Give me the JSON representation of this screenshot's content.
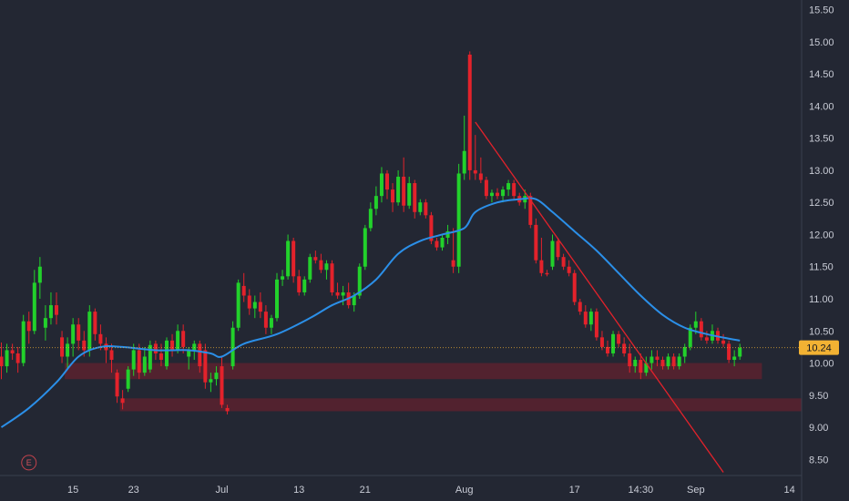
{
  "chart_data": {
    "type": "candlestick",
    "title": "",
    "xlabel": "",
    "ylabel": "",
    "ylim": [
      8.25,
      15.65
    ],
    "y_ticks": [
      {
        "label": "15.50",
        "value": 15.5
      },
      {
        "label": "15.00",
        "value": 15.0
      },
      {
        "label": "14.50",
        "value": 14.5
      },
      {
        "label": "14.00",
        "value": 14.0
      },
      {
        "label": "13.50",
        "value": 13.5
      },
      {
        "label": "13.00",
        "value": 13.0
      },
      {
        "label": "12.50",
        "value": 12.5
      },
      {
        "label": "12.00",
        "value": 12.0
      },
      {
        "label": "11.50",
        "value": 11.5
      },
      {
        "label": "11.00",
        "value": 11.0
      },
      {
        "label": "10.50",
        "value": 10.5
      },
      {
        "label": "10.00",
        "value": 10.0
      },
      {
        "label": "9.50",
        "value": 9.5
      },
      {
        "label": "9.00",
        "value": 9.0
      },
      {
        "label": "8.50",
        "value": 8.5
      }
    ],
    "x_ticks": [
      {
        "label": "15",
        "index": 13
      },
      {
        "label": "23",
        "index": 24
      },
      {
        "label": "Jul",
        "index": 40
      },
      {
        "label": "13",
        "index": 54
      },
      {
        "label": "21",
        "index": 66
      },
      {
        "label": "Aug",
        "index": 84
      },
      {
        "label": "17",
        "index": 104
      },
      {
        "label": "14:30",
        "index": 116
      },
      {
        "label": "Sep",
        "index": 126
      },
      {
        "label": "14",
        "index": 143
      }
    ],
    "x_count": 146,
    "last_price": "10.24",
    "current_price": 10.24,
    "grid": false,
    "colors": {
      "up": "#22d12b",
      "down": "#e3222b",
      "ma": "#2b8fe8",
      "trendline": "#e3222b",
      "zone": "#7a1f2b",
      "price_tag": "#f2b233",
      "background": "#232733",
      "axis_text": "#c9ccd6"
    },
    "candles": [
      [
        10.1,
        10.32,
        9.75,
        9.95
      ],
      [
        9.95,
        10.3,
        9.85,
        10.2
      ],
      [
        10.2,
        10.3,
        10.05,
        10.15
      ],
      [
        10.15,
        10.25,
        9.85,
        10.0
      ],
      [
        10.0,
        10.75,
        9.95,
        10.65
      ],
      [
        10.65,
        10.8,
        10.3,
        10.5
      ],
      [
        10.5,
        11.45,
        10.45,
        11.25
      ],
      [
        11.25,
        11.65,
        11.0,
        11.5
      ],
      [
        10.55,
        10.9,
        10.35,
        10.7
      ],
      [
        10.7,
        11.1,
        10.6,
        10.9
      ],
      [
        10.9,
        11.1,
        10.6,
        10.75
      ],
      [
        10.4,
        10.5,
        10.0,
        10.1
      ],
      [
        10.1,
        10.4,
        9.9,
        10.3
      ],
      [
        10.3,
        10.7,
        10.1,
        10.6
      ],
      [
        10.6,
        10.7,
        10.2,
        10.35
      ],
      [
        10.35,
        10.5,
        10.1,
        10.2
      ],
      [
        10.2,
        10.9,
        10.1,
        10.8
      ],
      [
        10.8,
        10.85,
        10.35,
        10.45
      ],
      [
        10.45,
        10.6,
        10.2,
        10.3
      ],
      [
        10.3,
        10.4,
        10.0,
        10.2
      ],
      [
        10.2,
        10.3,
        9.85,
        10.05
      ],
      [
        9.85,
        9.9,
        9.38,
        9.48
      ],
      [
        9.45,
        9.58,
        9.28,
        9.38
      ],
      [
        9.6,
        9.95,
        9.55,
        9.9
      ],
      [
        9.9,
        10.3,
        9.8,
        10.2
      ],
      [
        10.2,
        10.3,
        9.75,
        9.85
      ],
      [
        9.85,
        10.25,
        9.8,
        10.1
      ],
      [
        9.9,
        10.35,
        9.85,
        10.28
      ],
      [
        10.3,
        10.35,
        10.05,
        10.15
      ],
      [
        10.15,
        10.3,
        9.95,
        10.05
      ],
      [
        9.95,
        10.4,
        9.9,
        10.35
      ],
      [
        10.35,
        10.45,
        10.1,
        10.2
      ],
      [
        10.2,
        10.6,
        10.15,
        10.5
      ],
      [
        10.5,
        10.6,
        10.15,
        10.25
      ],
      [
        10.1,
        10.25,
        9.9,
        10.2
      ],
      [
        10.2,
        10.35,
        10.05,
        10.3
      ],
      [
        10.3,
        10.35,
        9.85,
        9.95
      ],
      [
        10.2,
        10.3,
        9.6,
        9.7
      ],
      [
        9.7,
        9.85,
        9.55,
        9.75
      ],
      [
        9.75,
        9.95,
        9.65,
        9.85
      ],
      [
        9.95,
        10.1,
        9.3,
        9.35
      ],
      [
        9.3,
        9.35,
        9.2,
        9.25
      ],
      [
        9.95,
        10.65,
        9.9,
        10.55
      ],
      [
        10.55,
        11.3,
        10.5,
        11.25
      ],
      [
        11.2,
        11.4,
        10.95,
        11.05
      ],
      [
        11.05,
        11.15,
        10.75,
        10.85
      ],
      [
        10.85,
        11.05,
        10.7,
        10.95
      ],
      [
        10.95,
        11.1,
        10.7,
        10.8
      ],
      [
        10.8,
        10.9,
        10.45,
        10.55
      ],
      [
        10.55,
        10.75,
        10.45,
        10.7
      ],
      [
        10.7,
        11.4,
        10.65,
        11.3
      ],
      [
        11.3,
        11.45,
        11.2,
        11.35
      ],
      [
        11.35,
        12.0,
        11.3,
        11.9
      ],
      [
        11.9,
        11.95,
        11.25,
        11.35
      ],
      [
        11.35,
        11.45,
        11.05,
        11.1
      ],
      [
        11.1,
        11.35,
        11.05,
        11.3
      ],
      [
        11.3,
        11.7,
        11.25,
        11.65
      ],
      [
        11.65,
        11.75,
        11.55,
        11.6
      ],
      [
        11.6,
        11.7,
        11.4,
        11.45
      ],
      [
        11.45,
        11.6,
        11.3,
        11.55
      ],
      [
        11.55,
        11.6,
        11.05,
        11.1
      ],
      [
        11.1,
        11.25,
        11.0,
        11.05
      ],
      [
        11.05,
        11.2,
        10.9,
        11.1
      ],
      [
        11.1,
        11.25,
        10.85,
        10.9
      ],
      [
        10.9,
        11.1,
        10.8,
        11.05
      ],
      [
        11.05,
        11.55,
        11.0,
        11.5
      ],
      [
        11.5,
        12.15,
        11.45,
        12.1
      ],
      [
        12.1,
        12.5,
        12.05,
        12.4
      ],
      [
        12.4,
        12.75,
        12.3,
        12.6
      ],
      [
        12.6,
        13.05,
        12.5,
        12.95
      ],
      [
        12.95,
        13.0,
        12.55,
        12.7
      ],
      [
        12.7,
        12.8,
        12.35,
        12.5
      ],
      [
        12.5,
        13.0,
        12.45,
        12.9
      ],
      [
        12.9,
        13.2,
        12.35,
        12.45
      ],
      [
        12.45,
        12.9,
        12.4,
        12.8
      ],
      [
        12.8,
        12.85,
        12.25,
        12.35
      ],
      [
        12.35,
        12.55,
        12.3,
        12.5
      ],
      [
        12.5,
        12.55,
        12.25,
        12.3
      ],
      [
        12.3,
        12.35,
        11.85,
        11.9
      ],
      [
        11.9,
        11.95,
        11.75,
        11.8
      ],
      [
        11.8,
        12.0,
        11.75,
        11.95
      ],
      [
        11.95,
        12.15,
        11.85,
        12.05
      ],
      [
        11.6,
        12.1,
        11.4,
        11.5
      ],
      [
        11.5,
        13.1,
        11.4,
        12.95
      ],
      [
        12.95,
        13.85,
        12.85,
        13.3
      ],
      [
        14.8,
        14.85,
        12.85,
        13.0
      ],
      [
        13.0,
        13.55,
        12.85,
        12.95
      ],
      [
        12.95,
        13.2,
        12.8,
        12.85
      ],
      [
        12.85,
        12.9,
        12.55,
        12.6
      ],
      [
        12.6,
        12.7,
        12.5,
        12.65
      ],
      [
        12.65,
        12.72,
        12.55,
        12.6
      ],
      [
        12.6,
        12.75,
        12.5,
        12.7
      ],
      [
        12.7,
        12.85,
        12.6,
        12.8
      ],
      [
        12.8,
        12.85,
        12.55,
        12.6
      ],
      [
        12.6,
        12.65,
        12.45,
        12.5
      ],
      [
        12.5,
        12.7,
        12.4,
        12.6
      ],
      [
        12.6,
        12.65,
        12.1,
        12.15
      ],
      [
        12.15,
        12.25,
        11.55,
        11.6
      ],
      [
        11.6,
        11.95,
        11.35,
        11.4
      ],
      [
        11.4,
        11.45,
        11.35,
        11.38
      ],
      [
        11.5,
        12.0,
        11.45,
        11.9
      ],
      [
        11.9,
        11.95,
        11.6,
        11.65
      ],
      [
        11.65,
        11.7,
        11.45,
        11.5
      ],
      [
        11.5,
        11.6,
        11.35,
        11.4
      ],
      [
        11.4,
        11.45,
        10.9,
        10.95
      ],
      [
        10.95,
        11.0,
        10.75,
        10.8
      ],
      [
        10.8,
        10.9,
        10.55,
        10.6
      ],
      [
        10.6,
        10.85,
        10.5,
        10.8
      ],
      [
        10.8,
        10.85,
        10.35,
        10.4
      ],
      [
        10.4,
        10.5,
        10.2,
        10.25
      ],
      [
        10.25,
        10.35,
        10.1,
        10.15
      ],
      [
        10.15,
        10.5,
        10.1,
        10.45
      ],
      [
        10.45,
        10.5,
        10.25,
        10.3
      ],
      [
        10.3,
        10.4,
        10.1,
        10.15
      ],
      [
        10.15,
        10.3,
        9.85,
        9.95
      ],
      [
        9.95,
        10.1,
        9.85,
        10.05
      ],
      [
        10.05,
        10.15,
        9.75,
        9.85
      ],
      [
        9.85,
        10.1,
        9.8,
        10.0
      ],
      [
        10.0,
        10.2,
        9.9,
        10.1
      ],
      [
        10.1,
        10.2,
        9.95,
        10.05
      ],
      [
        10.05,
        10.1,
        9.9,
        9.95
      ],
      [
        9.95,
        10.15,
        9.9,
        10.1
      ],
      [
        10.1,
        10.15,
        9.9,
        9.95
      ],
      [
        9.95,
        10.15,
        9.9,
        10.1
      ],
      [
        10.1,
        10.3,
        10.0,
        10.25
      ],
      [
        10.25,
        10.6,
        10.2,
        10.55
      ],
      [
        10.55,
        10.8,
        10.45,
        10.65
      ],
      [
        10.65,
        10.7,
        10.35,
        10.4
      ],
      [
        10.4,
        10.5,
        10.3,
        10.35
      ],
      [
        10.35,
        10.6,
        10.3,
        10.5
      ],
      [
        10.5,
        10.55,
        10.3,
        10.35
      ],
      [
        10.35,
        10.45,
        10.25,
        10.3
      ],
      [
        10.3,
        10.35,
        10.0,
        10.05
      ],
      [
        10.05,
        10.2,
        9.95,
        10.1
      ],
      [
        10.1,
        10.3,
        10.05,
        10.24
      ]
    ],
    "ma_series": [
      {
        "i": 0,
        "v": 9.0
      },
      {
        "i": 5,
        "v": 9.3
      },
      {
        "i": 10,
        "v": 9.7
      },
      {
        "i": 14,
        "v": 10.1
      },
      {
        "i": 18,
        "v": 10.25
      },
      {
        "i": 22,
        "v": 10.25
      },
      {
        "i": 28,
        "v": 10.2
      },
      {
        "i": 34,
        "v": 10.2
      },
      {
        "i": 38,
        "v": 10.15
      },
      {
        "i": 40,
        "v": 10.1
      },
      {
        "i": 44,
        "v": 10.3
      },
      {
        "i": 50,
        "v": 10.45
      },
      {
        "i": 56,
        "v": 10.7
      },
      {
        "i": 60,
        "v": 10.9
      },
      {
        "i": 64,
        "v": 11.05
      },
      {
        "i": 68,
        "v": 11.3
      },
      {
        "i": 72,
        "v": 11.7
      },
      {
        "i": 76,
        "v": 11.9
      },
      {
        "i": 80,
        "v": 12.0
      },
      {
        "i": 84,
        "v": 12.1
      },
      {
        "i": 86,
        "v": 12.35
      },
      {
        "i": 90,
        "v": 12.5
      },
      {
        "i": 94,
        "v": 12.55
      },
      {
        "i": 97,
        "v": 12.55
      },
      {
        "i": 100,
        "v": 12.35
      },
      {
        "i": 104,
        "v": 12.05
      },
      {
        "i": 108,
        "v": 11.75
      },
      {
        "i": 112,
        "v": 11.4
      },
      {
        "i": 116,
        "v": 11.05
      },
      {
        "i": 120,
        "v": 10.75
      },
      {
        "i": 124,
        "v": 10.55
      },
      {
        "i": 128,
        "v": 10.45
      },
      {
        "i": 132,
        "v": 10.38
      },
      {
        "i": 134,
        "v": 10.35
      }
    ],
    "trendline": {
      "from": {
        "i": 86,
        "v": 13.75
      },
      "to": {
        "i": 131,
        "v": 8.3
      }
    },
    "zones": [
      {
        "i0": 12,
        "i1": 138,
        "low": 9.75,
        "high": 10.0
      },
      {
        "i0": 22,
        "i1": 146,
        "low": 9.25,
        "high": 9.45
      }
    ],
    "event_badge": {
      "label": "E",
      "index": 5,
      "v": 8.45
    }
  }
}
